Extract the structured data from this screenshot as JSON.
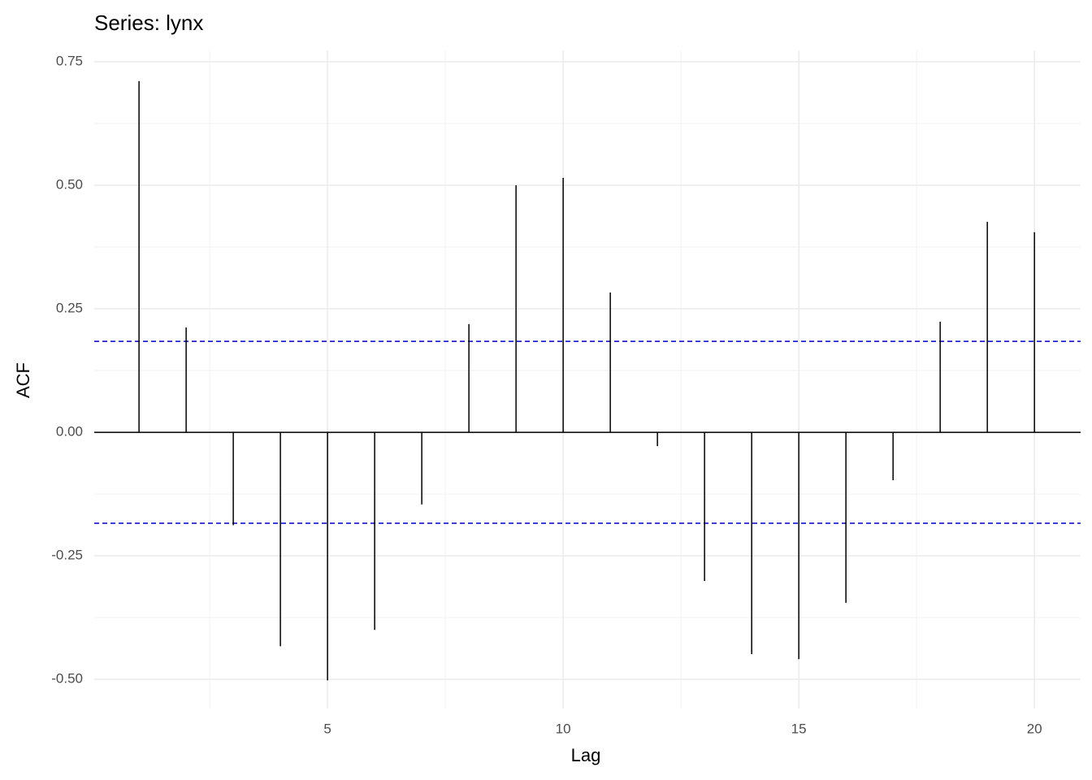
{
  "chart_data": {
    "type": "acf",
    "title": "Series: lynx",
    "xlabel": "Lag",
    "ylabel": "ACF",
    "x": [
      1,
      2,
      3,
      4,
      5,
      6,
      7,
      8,
      9,
      10,
      11,
      12,
      13,
      14,
      15,
      16,
      17,
      18,
      19,
      20
    ],
    "values": [
      0.711,
      0.212,
      -0.188,
      -0.433,
      -0.502,
      -0.4,
      -0.146,
      0.219,
      0.5,
      0.515,
      0.283,
      -0.028,
      -0.301,
      -0.449,
      -0.459,
      -0.345,
      -0.097,
      0.224,
      0.426,
      0.405
    ],
    "color": "#000000",
    "conf_lines": [
      0.184,
      -0.184
    ],
    "conf_color": "#0000cc",
    "xlim": [
      0.05,
      20.98
    ],
    "xticks": [
      5,
      10,
      15,
      20
    ],
    "ylim": [
      -0.559,
      0.773
    ],
    "yticks": [
      {
        "value": -0.5,
        "label": "-0.50"
      },
      {
        "value": -0.25,
        "label": "-0.25"
      },
      {
        "value": 0,
        "label": "0.00"
      },
      0.25,
      {
        "value": 0.5,
        "label": "0.50"
      },
      {
        "value": 0.75,
        "label": "0.75"
      }
    ],
    "grid": true
  }
}
